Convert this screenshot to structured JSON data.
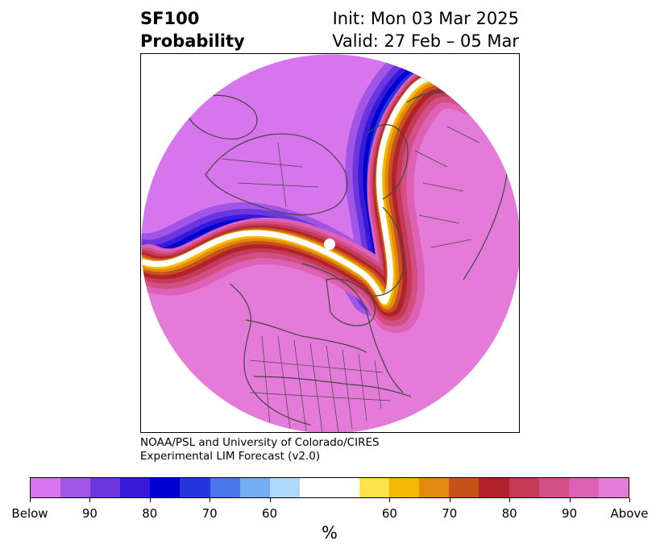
{
  "header": {
    "title_line1": "SF100",
    "title_line2": "Probability",
    "init": "Init: Mon 03 Mar 2025",
    "valid": "Valid: 27 Feb – 05 Mar"
  },
  "credit": {
    "line1": "NOAA/PSL and University of Colorado/CIRES",
    "line2": "Experimental LIM Forecast (v2.0)"
  },
  "colorbar": {
    "colors": [
      "#d675ec",
      "#a155e6",
      "#6c36de",
      "#3719d9",
      "#0000d2",
      "#2236dc",
      "#4977e9",
      "#72aef0",
      "#aed9fc",
      "#ffffff",
      "#ffffff",
      "#ffe24d",
      "#f5b800",
      "#e3890f",
      "#c7511a",
      "#b1222a",
      "#c43a58",
      "#d24f84",
      "#de61b5",
      "#e57bd8"
    ],
    "tick_labels": [
      "Below",
      "90",
      "80",
      "70",
      "60",
      "60",
      "70",
      "80",
      "90",
      "Above"
    ],
    "unit": "%"
  },
  "map": {
    "projection": "north-polar-stereographic",
    "background_region": "#e57bd8",
    "below_region": "#d675ec",
    "boundary_color": "#444444"
  }
}
